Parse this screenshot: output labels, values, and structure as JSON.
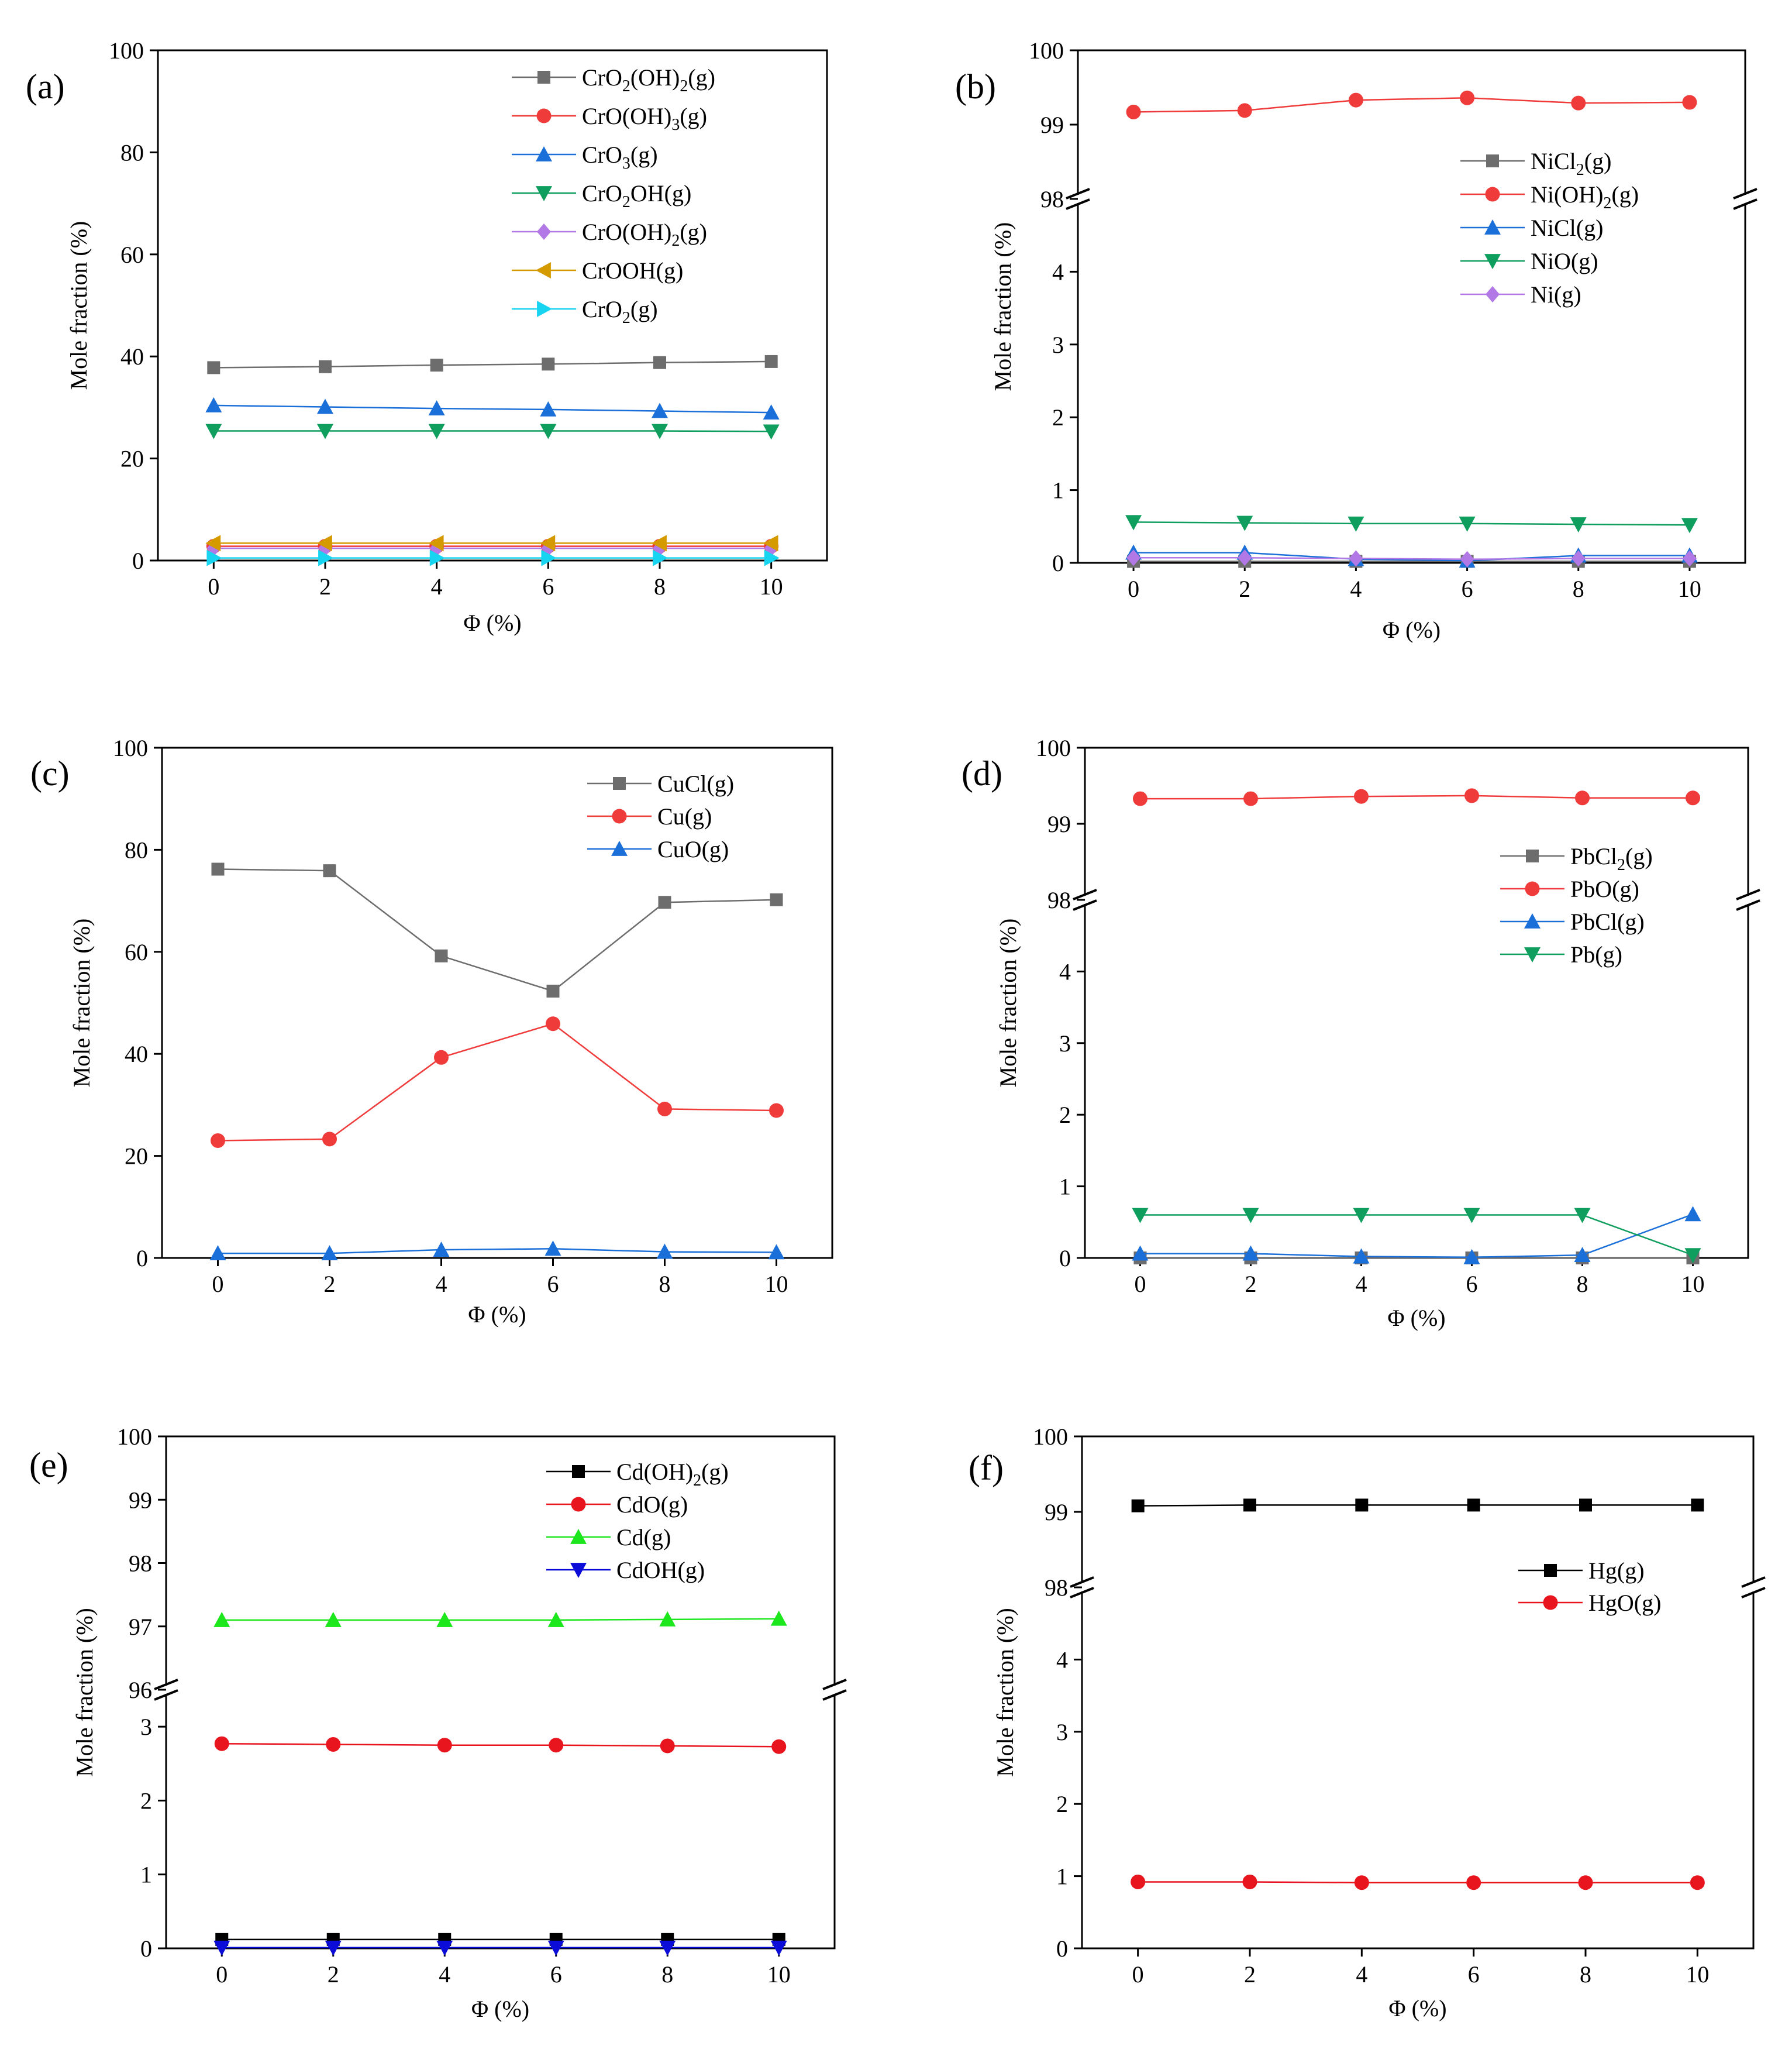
{
  "chart_data": [
    {
      "id": "a",
      "type": "line",
      "panel_label": "(a)",
      "xlabel": "Φ (%)",
      "ylabel": "Mole fraction (%)",
      "x": [
        0,
        2,
        4,
        6,
        8,
        10
      ],
      "xlim": [
        -1,
        11
      ],
      "xticks": [
        "0",
        "2",
        "4",
        "6",
        "8",
        "10"
      ],
      "ylim": [
        0,
        100
      ],
      "yticks": [
        "0",
        "20",
        "40",
        "60",
        "80",
        "100"
      ],
      "legend_position": "top-right",
      "series": [
        {
          "name": "CrO2(OH)2(g)",
          "legend": [
            [
              "CrO",
              0
            ],
            [
              "2",
              1
            ],
            [
              "(OH)",
              0
            ],
            [
              "2",
              1
            ],
            [
              "(g)",
              0
            ]
          ],
          "color": "#6d6d6d",
          "marker": "square",
          "values": [
            37.8,
            38.0,
            38.3,
            38.5,
            38.8,
            39.0
          ]
        },
        {
          "name": "CrO(OH)3(g)",
          "legend": [
            [
              "CrO(OH)",
              0
            ],
            [
              "3",
              1
            ],
            [
              "(g)",
              0
            ]
          ],
          "color": "#f03b3b",
          "marker": "circle",
          "values": [
            2.8,
            2.8,
            2.8,
            2.8,
            2.8,
            2.8
          ]
        },
        {
          "name": "CrO3(g)",
          "legend": [
            [
              "CrO",
              0
            ],
            [
              "3",
              1
            ],
            [
              "(g)",
              0
            ]
          ],
          "color": "#1b6fd8",
          "marker": "tri-up",
          "values": [
            30.4,
            30.1,
            29.8,
            29.6,
            29.3,
            29.0
          ]
        },
        {
          "name": "CrO2OH(g)",
          "legend": [
            [
              "CrO",
              0
            ],
            [
              "2",
              1
            ],
            [
              "OH(g)",
              0
            ]
          ],
          "color": "#0f9e5e",
          "marker": "tri-down",
          "values": [
            25.4,
            25.4,
            25.4,
            25.4,
            25.4,
            25.3
          ]
        },
        {
          "name": "CrO(OH)2(g)",
          "legend": [
            [
              "CrO(OH)",
              0
            ],
            [
              "2",
              1
            ],
            [
              "(g)",
              0
            ]
          ],
          "color": "#b178e6",
          "marker": "diamond",
          "values": [
            2.4,
            2.4,
            2.4,
            2.4,
            2.4,
            2.4
          ]
        },
        {
          "name": "CrOOH(g)",
          "legend": [
            [
              "CrOOH(g)",
              0
            ]
          ],
          "color": "#d49a00",
          "marker": "tri-left",
          "values": [
            3.4,
            3.4,
            3.4,
            3.4,
            3.4,
            3.4
          ]
        },
        {
          "name": "CrO2(g)",
          "legend": [
            [
              "CrO",
              0
            ],
            [
              "2",
              1
            ],
            [
              "(g)",
              0
            ]
          ],
          "color": "#17d4f0",
          "marker": "tri-right",
          "values": [
            0.5,
            0.5,
            0.5,
            0.5,
            0.5,
            0.5
          ]
        }
      ]
    },
    {
      "id": "b",
      "type": "line",
      "panel_label": "(b)",
      "xlabel": "Φ (%)",
      "ylabel": "Mole fraction (%)",
      "x": [
        0,
        2,
        4,
        6,
        8,
        10
      ],
      "xlim": [
        -1,
        11
      ],
      "xticks": [
        "0",
        "2",
        "4",
        "6",
        "8",
        "10"
      ],
      "broken_axis": {
        "lower": [
          0,
          5
        ],
        "upper": [
          98,
          100
        ]
      },
      "lower_yticks": [
        "0",
        "1",
        "2",
        "3",
        "4"
      ],
      "upper_yticks": [
        "98",
        "99",
        "100"
      ],
      "legend_position": "right",
      "series": [
        {
          "name": "NiCl2(g)",
          "legend": [
            [
              "NiCl",
              0
            ],
            [
              "2",
              1
            ],
            [
              "(g)",
              0
            ]
          ],
          "color": "#6d6d6d",
          "marker": "square",
          "values": [
            0.02,
            0.02,
            0.02,
            0.02,
            0.02,
            0.02
          ]
        },
        {
          "name": "Ni(OH)2(g)",
          "legend": [
            [
              "Ni(OH)",
              0
            ],
            [
              "2",
              1
            ],
            [
              "(g)",
              0
            ]
          ],
          "color": "#f03b3b",
          "marker": "circle",
          "values": [
            99.17,
            99.19,
            99.33,
            99.36,
            99.29,
            99.3
          ]
        },
        {
          "name": "NiCl(g)",
          "legend": [
            [
              "NiCl(g)",
              0
            ]
          ],
          "color": "#1b6fd8",
          "marker": "tri-up",
          "values": [
            0.14,
            0.14,
            0.05,
            0.03,
            0.1,
            0.1
          ]
        },
        {
          "name": "NiO(g)",
          "legend": [
            [
              "NiO(g)",
              0
            ]
          ],
          "color": "#0f9e5e",
          "marker": "tri-down",
          "values": [
            0.56,
            0.55,
            0.54,
            0.54,
            0.53,
            0.52
          ]
        },
        {
          "name": "Ni(g)",
          "legend": [
            [
              "Ni(g)",
              0
            ]
          ],
          "color": "#b178e6",
          "marker": "diamond",
          "values": [
            0.07,
            0.07,
            0.06,
            0.05,
            0.06,
            0.06
          ]
        }
      ]
    },
    {
      "id": "c",
      "type": "line",
      "panel_label": "(c)",
      "xlabel": "Φ (%)",
      "ylabel": "Mole fraction (%)",
      "x": [
        0,
        2,
        4,
        6,
        8,
        10
      ],
      "xlim": [
        -1,
        11
      ],
      "xticks": [
        "0",
        "2",
        "4",
        "6",
        "8",
        "10"
      ],
      "ylim": [
        0,
        100
      ],
      "yticks": [
        "0",
        "20",
        "40",
        "60",
        "80",
        "100"
      ],
      "legend_position": "top-right",
      "series": [
        {
          "name": "CuCl(g)",
          "legend": [
            [
              "CuCl(g)",
              0
            ]
          ],
          "color": "#6d6d6d",
          "marker": "square",
          "values": [
            76.2,
            75.9,
            59.2,
            52.3,
            69.7,
            70.2
          ]
        },
        {
          "name": "Cu(g)",
          "legend": [
            [
              "Cu(g)",
              0
            ]
          ],
          "color": "#f03b3b",
          "marker": "circle",
          "values": [
            23.0,
            23.3,
            39.3,
            45.9,
            29.2,
            28.9
          ]
        },
        {
          "name": "CuO(g)",
          "legend": [
            [
              "CuO(g)",
              0
            ]
          ],
          "color": "#1b6fd8",
          "marker": "tri-up",
          "values": [
            0.9,
            0.9,
            1.6,
            1.8,
            1.2,
            1.1
          ]
        }
      ]
    },
    {
      "id": "d",
      "type": "line",
      "panel_label": "(d)",
      "xlabel": "Φ (%)",
      "ylabel": "Mole fraction (%)",
      "x": [
        0,
        2,
        4,
        6,
        8,
        10
      ],
      "xlim": [
        -1,
        11
      ],
      "xticks": [
        "0",
        "2",
        "4",
        "6",
        "8",
        "10"
      ],
      "broken_axis": {
        "lower": [
          0,
          5
        ],
        "upper": [
          98,
          100
        ]
      },
      "lower_yticks": [
        "0",
        "1",
        "2",
        "3",
        "4"
      ],
      "upper_yticks": [
        "98",
        "99",
        "100"
      ],
      "legend_position": "right",
      "series": [
        {
          "name": "PbCl2(g)",
          "legend": [
            [
              "PbCl",
              0
            ],
            [
              "2",
              1
            ],
            [
              "(g)",
              0
            ]
          ],
          "color": "#6d6d6d",
          "marker": "square",
          "values": [
            0.0,
            0.0,
            0.0,
            0.0,
            0.0,
            0.0
          ]
        },
        {
          "name": "PbO(g)",
          "legend": [
            [
              "PbO(g)",
              0
            ]
          ],
          "color": "#f03b3b",
          "marker": "circle",
          "values": [
            99.33,
            99.33,
            99.36,
            99.37,
            99.34,
            99.34
          ]
        },
        {
          "name": "PbCl(g)",
          "legend": [
            [
              "PbCl(g)",
              0
            ]
          ],
          "color": "#1b6fd8",
          "marker": "tri-up",
          "values": [
            0.06,
            0.06,
            0.02,
            0.01,
            0.04,
            0.61
          ]
        },
        {
          "name": "Pb(g)",
          "legend": [
            [
              "Pb(g)",
              0
            ]
          ],
          "color": "#0f9e5e",
          "marker": "tri-down",
          "values": [
            0.6,
            0.6,
            0.6,
            0.6,
            0.6,
            0.04
          ]
        }
      ]
    },
    {
      "id": "e",
      "type": "line",
      "panel_label": "(e)",
      "xlabel": "Φ (%)",
      "ylabel": "Mole fraction (%)",
      "x": [
        0,
        2,
        4,
        6,
        8,
        10
      ],
      "xlim": [
        -1,
        11
      ],
      "xticks": [
        "0",
        "2",
        "4",
        "6",
        "8",
        "10"
      ],
      "broken_axis": {
        "lower": [
          0,
          3.5
        ],
        "upper": [
          96,
          100
        ]
      },
      "lower_yticks": [
        "0",
        "1",
        "2",
        "3"
      ],
      "upper_yticks": [
        "96",
        "97",
        "98",
        "99",
        "100"
      ],
      "legend_position": "top-right",
      "series": [
        {
          "name": "Cd(OH)2(g)",
          "legend": [
            [
              "Cd(OH)",
              0
            ],
            [
              "2",
              1
            ],
            [
              "(g)",
              0
            ]
          ],
          "color": "#000000",
          "marker": "square",
          "values": [
            0.12,
            0.12,
            0.12,
            0.12,
            0.12,
            0.12
          ]
        },
        {
          "name": "CdO(g)",
          "legend": [
            [
              "CdO(g)",
              0
            ]
          ],
          "color": "#e8141e",
          "marker": "circle",
          "values": [
            2.77,
            2.76,
            2.75,
            2.75,
            2.74,
            2.73
          ]
        },
        {
          "name": "Cd(g)",
          "legend": [
            [
              "Cd(g)",
              0
            ]
          ],
          "color": "#1ce61c",
          "marker": "tri-up",
          "values": [
            97.1,
            97.1,
            97.1,
            97.1,
            97.11,
            97.12
          ]
        },
        {
          "name": "CdOH(g)",
          "legend": [
            [
              "CdOH(g)",
              0
            ]
          ],
          "color": "#0c0cd8",
          "marker": "tri-down",
          "values": [
            0.01,
            0.01,
            0.01,
            0.01,
            0.01,
            0.01
          ]
        }
      ]
    },
    {
      "id": "f",
      "type": "line",
      "panel_label": "(f)",
      "xlabel": "Φ (%)",
      "ylabel": "Mole fraction (%)",
      "x": [
        0,
        2,
        4,
        6,
        8,
        10
      ],
      "xlim": [
        -1,
        11
      ],
      "xticks": [
        "0",
        "2",
        "4",
        "6",
        "8",
        "10"
      ],
      "broken_axis": {
        "lower": [
          0,
          5
        ],
        "upper": [
          98,
          100
        ]
      },
      "lower_yticks": [
        "0",
        "1",
        "2",
        "3",
        "4"
      ],
      "upper_yticks": [
        "98",
        "99",
        "100"
      ],
      "legend_position": "right",
      "series": [
        {
          "name": "Hg(g)",
          "legend": [
            [
              "Hg(g)",
              0
            ]
          ],
          "color": "#000000",
          "marker": "square",
          "values": [
            99.08,
            99.09,
            99.09,
            99.09,
            99.09,
            99.09
          ]
        },
        {
          "name": "HgO(g)",
          "legend": [
            [
              "HgO(g)",
              0
            ]
          ],
          "color": "#e8141e",
          "marker": "circle",
          "values": [
            0.92,
            0.92,
            0.91,
            0.91,
            0.91,
            0.91
          ]
        }
      ]
    }
  ]
}
